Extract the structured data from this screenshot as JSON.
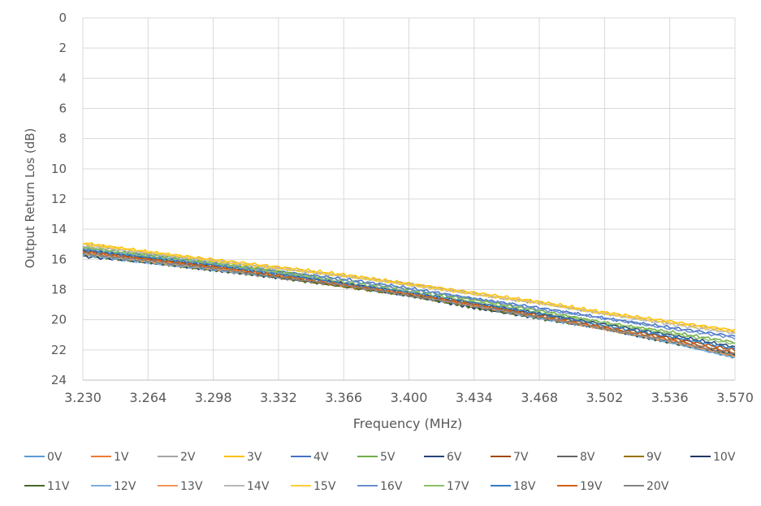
{
  "chart_data": {
    "type": "line",
    "title": "",
    "xlabel": "Frequency (MHz)",
    "ylabel": "Output Return Los (dB)",
    "xlim": [
      3.23,
      3.57
    ],
    "ylim": [
      0,
      24
    ],
    "y_reversed": true,
    "grid": true,
    "legend_position": "bottom",
    "x_ticks": [
      "3.230",
      "3.264",
      "3.298",
      "3.332",
      "3.366",
      "3.400",
      "3.434",
      "3.468",
      "3.502",
      "3.536",
      "3.570"
    ],
    "y_ticks": [
      "0",
      "2",
      "4",
      "6",
      "8",
      "10",
      "12",
      "14",
      "16",
      "18",
      "20",
      "22",
      "24"
    ],
    "x": [
      3.23,
      3.264,
      3.298,
      3.332,
      3.366,
      3.4,
      3.434,
      3.468,
      3.502,
      3.536,
      3.57
    ],
    "series": [
      {
        "name": "0V",
        "color": "#5B9BD5",
        "values": [
          15.7,
          16.2,
          16.7,
          17.2,
          17.7,
          18.4,
          19.1,
          19.8,
          20.6,
          21.5,
          22.5
        ]
      },
      {
        "name": "1V",
        "color": "#ED7D31",
        "values": [
          15.6,
          16.2,
          16.7,
          17.2,
          17.8,
          18.4,
          19.1,
          19.8,
          20.6,
          21.4,
          22.4
        ]
      },
      {
        "name": "2V",
        "color": "#A5A5A5",
        "values": [
          15.0,
          15.6,
          16.1,
          16.6,
          17.1,
          17.6,
          18.3,
          18.9,
          19.6,
          20.2,
          20.8
        ]
      },
      {
        "name": "3V",
        "color": "#FFC000",
        "values": [
          14.9,
          15.5,
          16.0,
          16.5,
          17.0,
          17.6,
          18.2,
          18.8,
          19.5,
          20.1,
          20.7
        ]
      },
      {
        "name": "4V",
        "color": "#4472C4",
        "values": [
          15.3,
          15.8,
          16.3,
          16.8,
          17.3,
          17.9,
          18.6,
          19.2,
          19.9,
          20.5,
          21.1
        ]
      },
      {
        "name": "5V",
        "color": "#70AD47",
        "values": [
          15.2,
          15.7,
          16.2,
          16.8,
          17.4,
          18.0,
          18.7,
          19.4,
          20.2,
          20.8,
          21.5
        ]
      },
      {
        "name": "6V",
        "color": "#264478",
        "values": [
          15.4,
          15.9,
          16.4,
          17.0,
          17.6,
          18.2,
          18.9,
          19.6,
          20.3,
          21.0,
          21.8
        ]
      },
      {
        "name": "7V",
        "color": "#9E480E",
        "values": [
          15.5,
          16.0,
          16.5,
          17.1,
          17.6,
          18.3,
          19.0,
          19.7,
          20.4,
          21.2,
          22.0
        ]
      },
      {
        "name": "8V",
        "color": "#636363",
        "values": [
          15.6,
          16.1,
          16.6,
          17.2,
          17.7,
          18.3,
          19.0,
          19.8,
          20.5,
          21.3,
          22.2
        ]
      },
      {
        "name": "9V",
        "color": "#997300",
        "values": [
          15.6,
          16.2,
          16.7,
          17.2,
          17.8,
          18.4,
          19.1,
          19.8,
          20.6,
          21.4,
          22.3
        ]
      },
      {
        "name": "10V",
        "color": "#1F3864",
        "values": [
          15.8,
          16.2,
          16.7,
          17.2,
          17.7,
          18.4,
          19.2,
          19.9,
          20.6,
          21.5,
          22.3
        ]
      },
      {
        "name": "11V",
        "color": "#43682B",
        "values": [
          15.7,
          16.2,
          16.7,
          17.2,
          17.8,
          18.4,
          19.2,
          19.9,
          20.6,
          21.5,
          22.4
        ]
      },
      {
        "name": "12V",
        "color": "#7CAFDD",
        "values": [
          15.7,
          16.2,
          16.7,
          17.2,
          17.7,
          18.4,
          19.1,
          19.9,
          20.6,
          21.5,
          22.5
        ]
      },
      {
        "name": "13V",
        "color": "#F1975A",
        "values": [
          15.6,
          16.1,
          16.6,
          17.1,
          17.7,
          18.3,
          19.1,
          19.8,
          20.6,
          21.4,
          22.4
        ]
      },
      {
        "name": "14V",
        "color": "#B7B7B7",
        "values": [
          15.1,
          15.6,
          16.1,
          16.6,
          17.1,
          17.7,
          18.3,
          18.9,
          19.6,
          20.3,
          20.9
        ]
      },
      {
        "name": "15V",
        "color": "#FFCD33",
        "values": [
          15.0,
          15.5,
          16.1,
          16.6,
          17.1,
          17.7,
          18.3,
          18.9,
          19.6,
          20.2,
          20.8
        ]
      },
      {
        "name": "16V",
        "color": "#698ED0",
        "values": [
          15.3,
          15.8,
          16.3,
          16.9,
          17.4,
          18.0,
          18.6,
          19.3,
          19.9,
          20.6,
          21.2
        ]
      },
      {
        "name": "17V",
        "color": "#8CC168",
        "values": [
          15.2,
          15.8,
          16.3,
          16.9,
          17.5,
          18.1,
          18.8,
          19.5,
          20.2,
          20.9,
          21.6
        ]
      },
      {
        "name": "18V",
        "color": "#327DC2",
        "values": [
          15.4,
          15.9,
          16.4,
          17.0,
          17.6,
          18.2,
          18.9,
          19.6,
          20.4,
          21.1,
          21.9
        ]
      },
      {
        "name": "19V",
        "color": "#D26012",
        "values": [
          15.5,
          16.0,
          16.5,
          17.1,
          17.7,
          18.3,
          19.0,
          19.8,
          20.5,
          21.3,
          22.2
        ]
      },
      {
        "name": "20V",
        "color": "#848484",
        "values": [
          15.6,
          16.1,
          16.6,
          17.2,
          17.7,
          18.4,
          19.1,
          19.8,
          20.6,
          21.4,
          22.3
        ]
      }
    ]
  }
}
